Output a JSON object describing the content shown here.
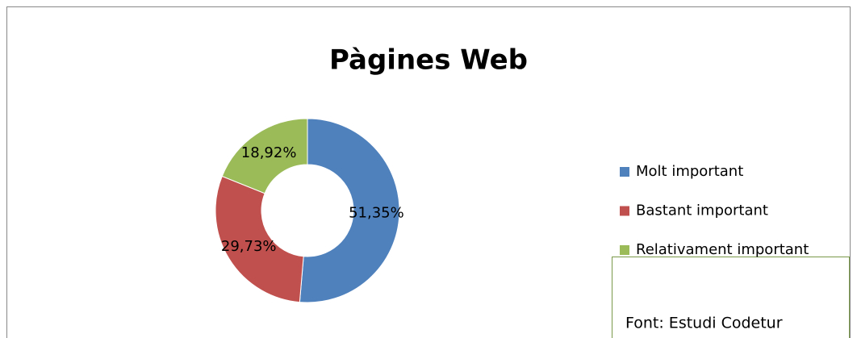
{
  "chart_data": {
    "type": "donut",
    "title": "Pàgines Web",
    "categories": [
      "Molt important",
      "Bastant important",
      "Relativament important"
    ],
    "values": [
      51.35,
      29.73,
      18.92
    ],
    "value_labels": [
      "51,35%",
      "29,73%",
      "18,92%"
    ],
    "colors": [
      "#4f81bd",
      "#c0504d",
      "#9bbb59"
    ],
    "legend": "right",
    "annotation": "Font: Estudi Codetur"
  }
}
